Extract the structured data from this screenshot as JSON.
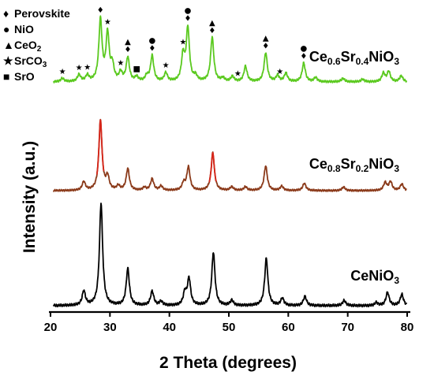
{
  "chart_data": {
    "type": "line",
    "xlabel": "2 Theta (degrees)",
    "ylabel": "Intensity (a.u.)",
    "xlim": [
      20,
      80
    ],
    "x_ticks": [
      "20",
      "30",
      "40",
      "50",
      "60",
      "70",
      "80"
    ],
    "grid": false,
    "legend_position": "top-left",
    "legend": [
      {
        "symbol": "♦",
        "label": "Perovskite"
      },
      {
        "symbol": "●",
        "label": "NiO"
      },
      {
        "symbol": "▲",
        "label": "CeO",
        "sub": "2",
        "after": ""
      },
      {
        "symbol": "★",
        "label": "SrCO",
        "sub": "3",
        "after": ""
      },
      {
        "symbol": "■",
        "label": "SrO"
      }
    ],
    "series": [
      {
        "name": "Ce0.6Sr0.4NiO3",
        "label_parts": [
          [
            "Ce",
            ""
          ],
          [
            "0.6",
            "sub"
          ],
          [
            "Sr",
            ""
          ],
          [
            "0.4",
            "sub"
          ],
          [
            "NiO",
            ""
          ],
          [
            "3",
            "sub"
          ]
        ],
        "color": "#5ac91e",
        "baseline_relative": 0.05,
        "peaks": [
          [
            22.0,
            0.04
          ],
          [
            24.8,
            0.08
          ],
          [
            26.2,
            0.07
          ],
          [
            28.4,
            0.72
          ],
          [
            29.6,
            0.55
          ],
          [
            30.4,
            0.18
          ],
          [
            31.8,
            0.1
          ],
          [
            33.0,
            0.28
          ],
          [
            34.5,
            0.05
          ],
          [
            36.2,
            0.06
          ],
          [
            37.1,
            0.3
          ],
          [
            39.4,
            0.1
          ],
          [
            42.3,
            0.3
          ],
          [
            43.1,
            0.62
          ],
          [
            44.4,
            0.06
          ],
          [
            47.2,
            0.52
          ],
          [
            49.0,
            0.04
          ],
          [
            50.6,
            0.06
          ],
          [
            52.8,
            0.18
          ],
          [
            56.2,
            0.34
          ],
          [
            58.2,
            0.07
          ],
          [
            59.6,
            0.1
          ],
          [
            62.6,
            0.22
          ],
          [
            64.6,
            0.05
          ],
          [
            69.2,
            0.04
          ],
          [
            72.5,
            0.03
          ],
          [
            76.0,
            0.1
          ],
          [
            76.9,
            0.12
          ],
          [
            79.0,
            0.07
          ]
        ],
        "markers": [
          {
            "x": 28.4,
            "symbols": [
              "♦"
            ]
          },
          {
            "x": 29.6,
            "symbols": [
              "★"
            ]
          },
          {
            "x": 22.0,
            "symbols": [
              "★"
            ]
          },
          {
            "x": 24.8,
            "symbols": [
              "★"
            ]
          },
          {
            "x": 26.2,
            "symbols": [
              "★"
            ]
          },
          {
            "x": 31.8,
            "symbols": [
              "★"
            ]
          },
          {
            "x": 33.0,
            "symbols": [
              "▲",
              "♦"
            ]
          },
          {
            "x": 34.5,
            "symbols": [
              "■"
            ]
          },
          {
            "x": 37.1,
            "symbols": [
              "●",
              "♦"
            ]
          },
          {
            "x": 39.4,
            "symbols": [
              "★"
            ]
          },
          {
            "x": 42.3,
            "symbols": [
              "★"
            ]
          },
          {
            "x": 43.1,
            "symbols": [
              "●",
              "♦"
            ]
          },
          {
            "x": 47.2,
            "symbols": [
              "▲",
              "♦"
            ]
          },
          {
            "x": 51.5,
            "symbols": [
              "★"
            ]
          },
          {
            "x": 56.2,
            "symbols": [
              "▲",
              "♦"
            ]
          },
          {
            "x": 58.6,
            "symbols": [
              "★"
            ]
          },
          {
            "x": 62.6,
            "symbols": [
              "●",
              "♦"
            ]
          }
        ]
      },
      {
        "name": "Ce0.8Sr0.2NiO3",
        "label_parts": [
          [
            "Ce",
            ""
          ],
          [
            "0.8",
            "sub"
          ],
          [
            "Sr",
            ""
          ],
          [
            "0.2",
            "sub"
          ],
          [
            "NiO",
            ""
          ],
          [
            "3",
            "sub"
          ]
        ],
        "color": "#8b3a1a",
        "peak_color": "#d7261a",
        "peaks": [
          [
            25.6,
            0.12
          ],
          [
            28.4,
            0.96
          ],
          [
            29.6,
            0.18
          ],
          [
            31.4,
            0.06
          ],
          [
            33.0,
            0.3
          ],
          [
            35.8,
            0.04
          ],
          [
            37.1,
            0.16
          ],
          [
            38.6,
            0.06
          ],
          [
            42.4,
            0.1
          ],
          [
            43.2,
            0.32
          ],
          [
            47.3,
            0.52
          ],
          [
            50.5,
            0.05
          ],
          [
            52.8,
            0.05
          ],
          [
            56.2,
            0.34
          ],
          [
            58.9,
            0.06
          ],
          [
            62.7,
            0.1
          ],
          [
            69.3,
            0.05
          ],
          [
            76.3,
            0.11
          ],
          [
            77.2,
            0.12
          ],
          [
            79.1,
            0.09
          ]
        ]
      },
      {
        "name": "CeNiO3",
        "label_parts": [
          [
            "CeNiO",
            ""
          ],
          [
            "3",
            "sub"
          ]
        ],
        "color": "#000000",
        "peaks": [
          [
            25.6,
            0.14
          ],
          [
            28.5,
            1.0
          ],
          [
            33.0,
            0.36
          ],
          [
            37.1,
            0.14
          ],
          [
            38.6,
            0.04
          ],
          [
            42.6,
            0.12
          ],
          [
            43.3,
            0.26
          ],
          [
            47.4,
            0.52
          ],
          [
            50.5,
            0.05
          ],
          [
            56.3,
            0.46
          ],
          [
            59.0,
            0.07
          ],
          [
            62.8,
            0.09
          ],
          [
            69.4,
            0.05
          ],
          [
            74.8,
            0.03
          ],
          [
            76.7,
            0.13
          ],
          [
            79.1,
            0.11
          ]
        ]
      }
    ]
  }
}
